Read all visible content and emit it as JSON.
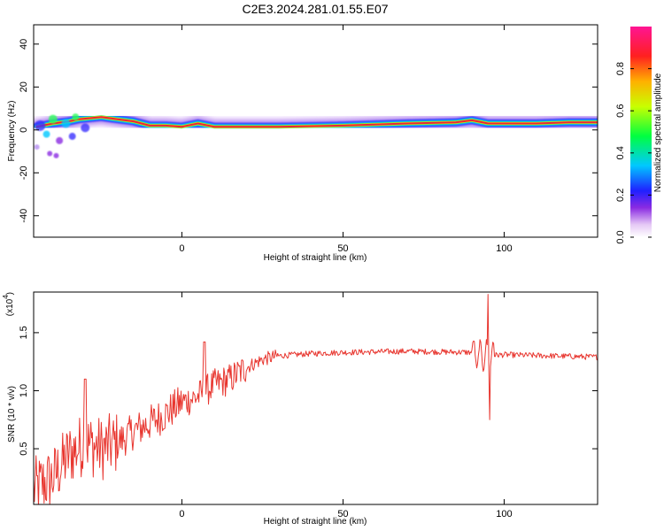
{
  "title": "C2E3.2024.281.01.55.E07",
  "colors": {
    "snr_line": "#e8362f",
    "ridge_core": "#e8243c",
    "axis": "#000000"
  },
  "chart_data": [
    {
      "type": "heatmap",
      "xlabel": "Height of straight line (km)",
      "ylabel": "Frequency (Hz)",
      "xlim": [
        -46,
        129
      ],
      "ylim": [
        -50,
        49
      ],
      "x_ticks": [
        0,
        50,
        100
      ],
      "y_ticks": [
        -40,
        -20,
        0,
        20,
        40
      ],
      "colorbar": {
        "label": "Normalized spectral amplitude",
        "range": [
          0,
          1
        ],
        "ticks": [
          "0.0",
          "0.2",
          "0.4",
          "0.6",
          "0.8"
        ]
      },
      "ridge": [
        {
          "x": -45,
          "f": 1.5
        },
        {
          "x": -40,
          "f": 3
        },
        {
          "x": -35,
          "f": 4
        },
        {
          "x": -32,
          "f": 5
        },
        {
          "x": -25,
          "f": 6
        },
        {
          "x": -20,
          "f": 5
        },
        {
          "x": -15,
          "f": 4
        },
        {
          "x": -10,
          "f": 2
        },
        {
          "x": -5,
          "f": 2
        },
        {
          "x": 0,
          "f": 1.5
        },
        {
          "x": 5,
          "f": 3
        },
        {
          "x": 10,
          "f": 1.5
        },
        {
          "x": 30,
          "f": 1.5
        },
        {
          "x": 50,
          "f": 2
        },
        {
          "x": 70,
          "f": 3
        },
        {
          "x": 85,
          "f": 3.5
        },
        {
          "x": 90,
          "f": 4.5
        },
        {
          "x": 95,
          "f": 3
        },
        {
          "x": 100,
          "f": 3
        },
        {
          "x": 110,
          "f": 3
        },
        {
          "x": 120,
          "f": 3.5
        },
        {
          "x": 129,
          "f": 3.5
        }
      ]
    },
    {
      "type": "line",
      "xlabel": "Height of straight line (km)",
      "ylabel": "SNR (10 * v/v)",
      "scale_label": "(x10",
      "scale_exponent": "4",
      "xlim": [
        -46,
        129
      ],
      "ylim": [
        0.02,
        1.85
      ],
      "x_ticks": [
        0,
        50,
        100
      ],
      "y_ticks": [
        "0.5",
        "1.0",
        "1.5"
      ],
      "trend": [
        {
          "x": -46,
          "y": 0.15
        },
        {
          "x": -40,
          "y": 0.25
        },
        {
          "x": -35,
          "y": 0.45
        },
        {
          "x": -30,
          "y": 0.55
        },
        {
          "x": -25,
          "y": 0.5
        },
        {
          "x": -20,
          "y": 0.55
        },
        {
          "x": -15,
          "y": 0.65
        },
        {
          "x": -10,
          "y": 0.72
        },
        {
          "x": -5,
          "y": 0.8
        },
        {
          "x": 0,
          "y": 0.9
        },
        {
          "x": 5,
          "y": 0.95
        },
        {
          "x": 10,
          "y": 1.05
        },
        {
          "x": 15,
          "y": 1.1
        },
        {
          "x": 20,
          "y": 1.2
        },
        {
          "x": 25,
          "y": 1.27
        },
        {
          "x": 30,
          "y": 1.3
        },
        {
          "x": 40,
          "y": 1.32
        },
        {
          "x": 50,
          "y": 1.33
        },
        {
          "x": 70,
          "y": 1.34
        },
        {
          "x": 90,
          "y": 1.33
        },
        {
          "x": 92,
          "y": 1.3
        },
        {
          "x": 100,
          "y": 1.31
        },
        {
          "x": 115,
          "y": 1.3
        },
        {
          "x": 129,
          "y": 1.29
        }
      ],
      "events": [
        {
          "x": -30,
          "y": 1.1
        },
        {
          "x": 7,
          "y": 1.42
        },
        {
          "x": 95,
          "y": 1.83
        },
        {
          "x": 95,
          "y": 0.75
        }
      ]
    }
  ]
}
